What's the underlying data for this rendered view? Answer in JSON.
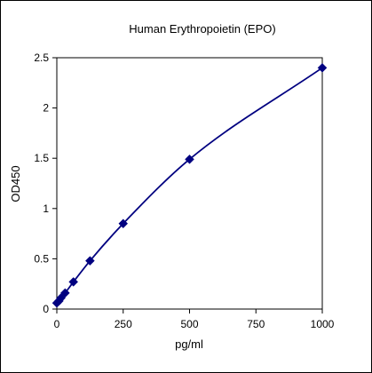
{
  "chart_data": {
    "type": "line",
    "title": "Human Erythropoietin (EPO)",
    "xlabel": "pg/ml",
    "ylabel": "OD450",
    "xlim": [
      0,
      1000
    ],
    "ylim": [
      0,
      2.5
    ],
    "x_ticks": [
      0,
      250,
      500,
      750,
      1000
    ],
    "y_ticks": [
      0,
      0.5,
      1,
      1.5,
      2,
      2.5
    ],
    "x_tick_labels": [
      "0",
      "250",
      "500",
      "750",
      "1000"
    ],
    "y_tick_labels": [
      "0",
      "0.5",
      "1",
      "1.5",
      "2",
      "2.5"
    ],
    "grid": false,
    "legend": "none",
    "series": [
      {
        "x": [
          0,
          7.8,
          15.6,
          31.25,
          62.5,
          125,
          250,
          500,
          1000
        ],
        "y": [
          0.06,
          0.08,
          0.11,
          0.16,
          0.27,
          0.48,
          0.85,
          1.49,
          2.4
        ],
        "color": "#000080",
        "marker": "diamond",
        "line": "smooth"
      }
    ]
  }
}
